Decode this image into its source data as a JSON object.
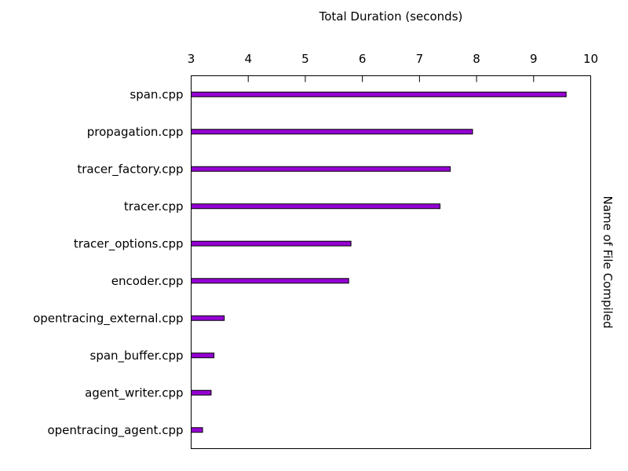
{
  "chart_data": {
    "type": "bar",
    "orientation": "horizontal",
    "xlabel": "Total Duration (seconds)",
    "ylabel": "Name of File Compiled",
    "xlim": [
      3,
      10
    ],
    "xticks": [
      3,
      4,
      5,
      6,
      7,
      8,
      9,
      10
    ],
    "x_axis_position": "top",
    "grid": false,
    "categories": [
      "span.cpp",
      "propagation.cpp",
      "tracer_factory.cpp",
      "tracer.cpp",
      "tracer_options.cpp",
      "encoder.cpp",
      "opentracing_external.cpp",
      "span_buffer.cpp",
      "agent_writer.cpp",
      "opentracing_agent.cpp"
    ],
    "values": [
      9.57,
      7.93,
      7.54,
      7.36,
      5.8,
      5.76,
      3.58,
      3.4,
      3.35,
      3.2
    ],
    "bar_color": "#9400d3"
  }
}
